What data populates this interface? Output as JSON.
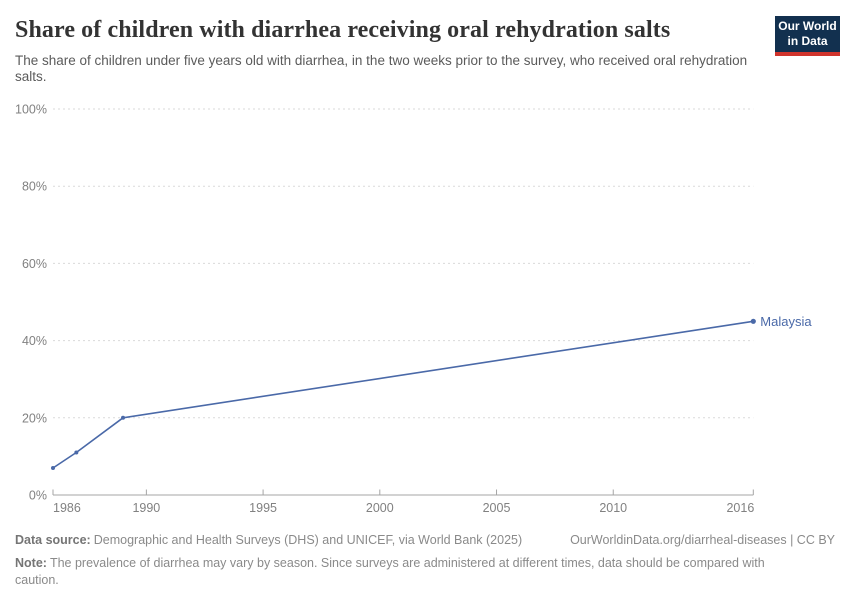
{
  "header": {
    "title": "Share of children with diarrhea receiving oral rehydration salts",
    "subtitle": "The share of children under five years old with diarrhea, in the two weeks prior to the survey, who received oral rehydration salts.",
    "logo": {
      "line1": "Our World",
      "line2": "in Data"
    }
  },
  "chart_data": {
    "type": "line",
    "title": "Share of children with diarrhea receiving oral rehydration salts",
    "xlabel": "",
    "ylabel": "",
    "xlim": [
      1986,
      2016
    ],
    "ylim": [
      0,
      100
    ],
    "grid": "horizontal-dashed",
    "legend_position": "end-of-line-label",
    "x_ticks": [
      1986,
      1990,
      1995,
      2000,
      2005,
      2010,
      2016
    ],
    "y_ticks": [
      0,
      20,
      40,
      60,
      80,
      100
    ],
    "y_tick_suffix": "%",
    "series": [
      {
        "name": "Malaysia",
        "color": "#4a69a8",
        "points": [
          {
            "year": 1986,
            "value": 7
          },
          {
            "year": 1987,
            "value": 11
          },
          {
            "year": 1989,
            "value": 20
          },
          {
            "year": 2016,
            "value": 45
          }
        ]
      }
    ]
  },
  "footer": {
    "source_label": "Data source:",
    "source_text": "Demographic and Health Surveys (DHS) and UNICEF, via World Bank (2025)",
    "attribution": "OurWorldinData.org/diarrheal-diseases | CC BY",
    "note_label": "Note:",
    "note_text": "The prevalence of diarrhea may vary by season. Since surveys are administered at different times, data should be compared with caution."
  },
  "colors": {
    "line": "#4a69a8",
    "grid": "#dadada",
    "axis": "#a5a5a5",
    "tick_label": "#818181",
    "title_text": "#333333",
    "subtitle_text": "#5b5b5b",
    "footer_text": "#8a8a8a",
    "logo_background": "#12304f",
    "logo_accent": "#d0342c"
  }
}
